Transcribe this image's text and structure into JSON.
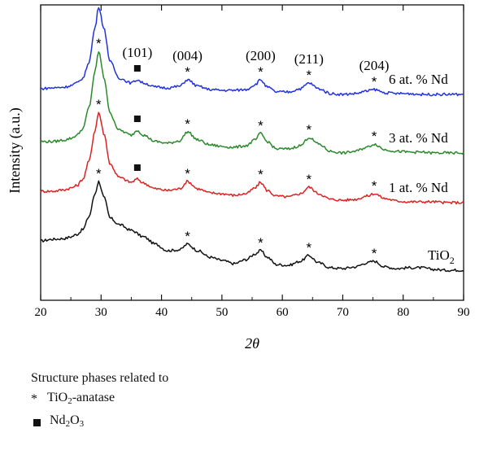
{
  "chart_data": {
    "type": "line",
    "xlabel": "2θ",
    "ylabel": "Intensity (a.u.)",
    "xlim": [
      20,
      90
    ],
    "xticks": [
      20,
      30,
      40,
      50,
      60,
      70,
      80,
      90
    ],
    "grid": false,
    "y_units": "arbitrary, offset stacked",
    "series": [
      {
        "name": "TiO2",
        "label_text": "TiO",
        "label_sub": "2",
        "color": "#111111",
        "baseline": 0,
        "x": [
          20,
          22,
          24,
          25,
          26,
          27,
          28,
          29,
          29.6,
          30.5,
          31.5,
          33,
          35,
          37,
          39,
          41,
          43,
          44.3,
          46,
          48,
          50,
          52,
          54,
          55.5,
          56.4,
          57.5,
          59,
          61,
          63,
          64.4,
          66,
          68,
          70,
          72,
          74,
          75.2,
          77,
          79,
          81,
          83,
          85,
          87,
          90
        ],
        "y": [
          42,
          44,
          45,
          47,
          50,
          56,
          72,
          100,
          115,
          95,
          70,
          62,
          55,
          47,
          38,
          30,
          31,
          38,
          30,
          22,
          18,
          14,
          19,
          26,
          30,
          22,
          13,
          12,
          17,
          24,
          15,
          9,
          8,
          10,
          15,
          17,
          10,
          8,
          9,
          9,
          7,
          6,
          6
        ]
      },
      {
        "name": "1 at. % Nd",
        "color": "#dd2222",
        "baseline": 88,
        "x": [
          20,
          22,
          24,
          25,
          26,
          27,
          28,
          29,
          29.6,
          30.5,
          31.5,
          33,
          35,
          36,
          37,
          39,
          41,
          43,
          44.3,
          46,
          48,
          50,
          52,
          54,
          55.5,
          56.4,
          57.5,
          59,
          61,
          63,
          64.4,
          66,
          68,
          70,
          72,
          74,
          75.2,
          77,
          79,
          81,
          83,
          85,
          87,
          90
        ],
        "y": [
          15,
          15,
          17,
          19,
          22,
          30,
          52,
          90,
          112,
          85,
          48,
          32,
          26,
          30,
          25,
          18,
          16,
          18,
          27,
          18,
          13,
          12,
          10,
          12,
          19,
          26,
          16,
          9,
          8,
          12,
          20,
          12,
          5,
          4,
          5,
          9,
          12,
          6,
          3,
          2,
          2,
          2,
          1,
          1
        ]
      },
      {
        "name": "3 at. % Nd",
        "color": "#2a8a2a",
        "baseline": 150,
        "x": [
          20,
          22,
          24,
          25,
          26,
          27,
          28,
          29,
          29.6,
          30.5,
          31.5,
          33,
          35,
          36,
          37,
          39,
          41,
          43,
          44.3,
          46,
          48,
          50,
          52,
          54,
          55.5,
          56.4,
          57.5,
          59,
          61,
          63,
          64.4,
          66,
          68,
          70,
          72,
          74,
          75.2,
          77,
          79,
          81,
          83,
          85,
          87,
          90
        ],
        "y": [
          14,
          14,
          16,
          18,
          22,
          30,
          56,
          100,
          125,
          92,
          48,
          28,
          22,
          28,
          22,
          14,
          12,
          15,
          26,
          16,
          10,
          8,
          7,
          9,
          16,
          24,
          14,
          5,
          5,
          9,
          19,
          11,
          2,
          0,
          2,
          7,
          11,
          4,
          2,
          1,
          1,
          0,
          0,
          0
        ]
      },
      {
        "name": "6 at. % Nd",
        "color": "#2233dd",
        "baseline": 222,
        "x": [
          20,
          22,
          24,
          25,
          26,
          27,
          28,
          29,
          29.6,
          30.5,
          31.5,
          33,
          35,
          36,
          37,
          39,
          41,
          43,
          44.3,
          46,
          48,
          50,
          52,
          54,
          55.5,
          56.4,
          57.5,
          59,
          61,
          63,
          64.4,
          66,
          68,
          70,
          72,
          74,
          75.2,
          77,
          79,
          81,
          83,
          85,
          87,
          90
        ],
        "y": [
          7,
          8,
          9,
          11,
          14,
          20,
          40,
          82,
          108,
          80,
          40,
          20,
          14,
          18,
          14,
          9,
          8,
          10,
          18,
          10,
          6,
          5,
          5,
          6,
          12,
          18,
          9,
          3,
          3,
          7,
          14,
          7,
          1,
          0,
          1,
          4,
          6,
          2,
          1,
          1,
          0,
          0,
          0,
          0
        ]
      }
    ],
    "annotations": [
      {
        "text": "(101)",
        "x": 29.6
      },
      {
        "text": "(101)",
        "x": 36
      },
      {
        "text": "(004)",
        "x": 44.3
      },
      {
        "text": "(200)",
        "x": 56.4
      },
      {
        "text": "(211)",
        "x": 64.4
      },
      {
        "text": "(204)",
        "x": 75.2
      }
    ],
    "markers": {
      "asterisk_x": [
        29.6,
        44.3,
        56.4,
        64.4,
        75.2
      ],
      "square_x": [
        36
      ],
      "square_series": [
        "1 at. % Nd",
        "3 at. % Nd",
        "6 at. % Nd"
      ]
    }
  },
  "legend": {
    "title": "Structure phases related to",
    "items": [
      {
        "symbol": "*",
        "text": "TiO",
        "sub": "2",
        "suffix": "-anatase"
      },
      {
        "symbol": "square",
        "text": "Nd",
        "sub": "2",
        "suffix": "O",
        "sub2": "3"
      }
    ]
  }
}
